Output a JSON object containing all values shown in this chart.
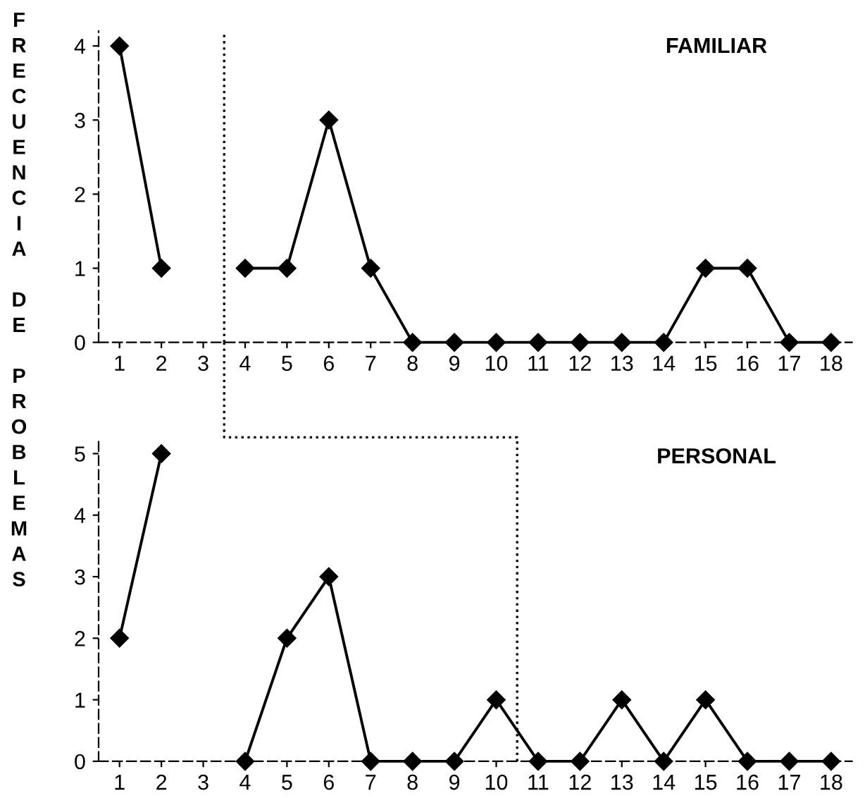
{
  "chart_data": [
    {
      "type": "line",
      "title": "FAMILIAR",
      "ylabel": "FRECUENCIA DE PROBLEMAS",
      "x": [
        1,
        2,
        3,
        4,
        5,
        6,
        7,
        8,
        9,
        10,
        11,
        12,
        13,
        14,
        15,
        16,
        17,
        18
      ],
      "series": [
        {
          "color": "#000000",
          "values": [
            4,
            1,
            null,
            1,
            1,
            3,
            1,
            0,
            0,
            0,
            0,
            0,
            0,
            0,
            1,
            1,
            0,
            0
          ]
        }
      ],
      "xlim": [
        0.5,
        18.5
      ],
      "xticks": [
        1,
        2,
        3,
        4,
        5,
        6,
        7,
        8,
        9,
        10,
        11,
        12,
        13,
        14,
        15,
        16,
        17,
        18
      ],
      "ylim": [
        0,
        4.2
      ],
      "yticks": [
        0,
        1,
        2,
        3,
        4
      ],
      "marker": "diamond",
      "line_style": "solid",
      "grid": false,
      "ref_lines": [
        {
          "axis": "x",
          "value": 3.5,
          "line_style": "dotted",
          "color": "#000000"
        }
      ]
    },
    {
      "type": "line",
      "title": "PERSONAL",
      "x": [
        1,
        2,
        3,
        4,
        5,
        6,
        7,
        8,
        9,
        10,
        11,
        12,
        13,
        14,
        15,
        16,
        17,
        18
      ],
      "series": [
        {
          "color": "#000000",
          "values": [
            2,
            5,
            null,
            0,
            2,
            3,
            0,
            0,
            0,
            1,
            0,
            0,
            1,
            0,
            1,
            0,
            0,
            0
          ]
        }
      ],
      "xlim": [
        0.5,
        18.5
      ],
      "xticks": [
        1,
        2,
        3,
        4,
        5,
        6,
        7,
        8,
        9,
        10,
        11,
        12,
        13,
        14,
        15,
        16,
        17,
        18
      ],
      "ylim": [
        0,
        5.2
      ],
      "yticks": [
        0,
        1,
        2,
        3,
        4,
        5
      ],
      "marker": "diamond",
      "line_style": "solid",
      "grid": false,
      "ref_lines": [
        {
          "axis": "x",
          "value": 10.5,
          "line_style": "dotted",
          "color": "#000000"
        }
      ]
    }
  ]
}
